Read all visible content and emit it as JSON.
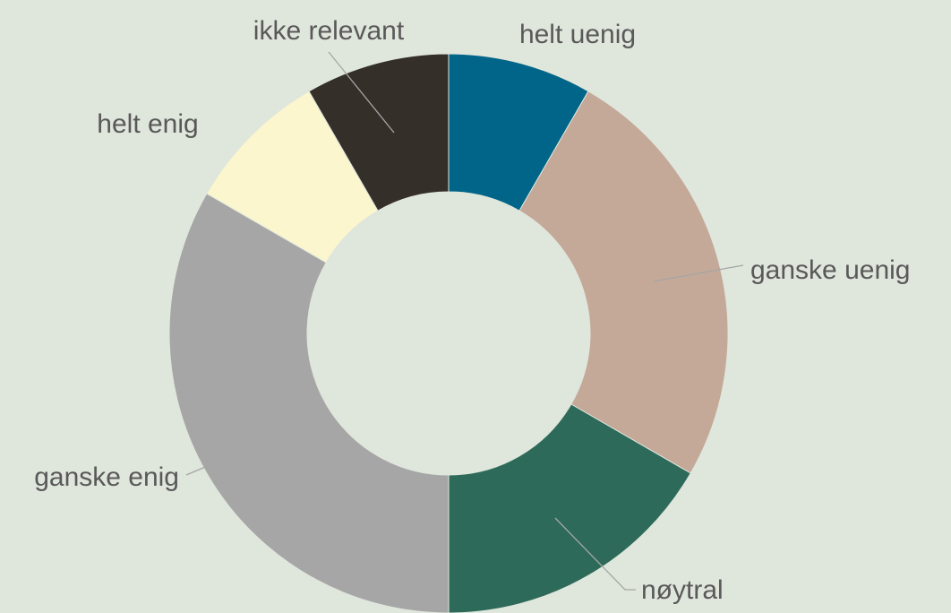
{
  "chart_data": {
    "type": "donut",
    "categories": [
      "helt uenig",
      "ganske uenig",
      "nøytral",
      "ganske enig",
      "helt enig",
      "ikke relevant"
    ],
    "values": [
      1,
      3,
      2,
      4,
      1,
      1
    ],
    "colors": [
      "#006588",
      "#c4a898",
      "#2d6a5a",
      "#a6a6a6",
      "#fbf6cd",
      "#352f29"
    ]
  }
}
